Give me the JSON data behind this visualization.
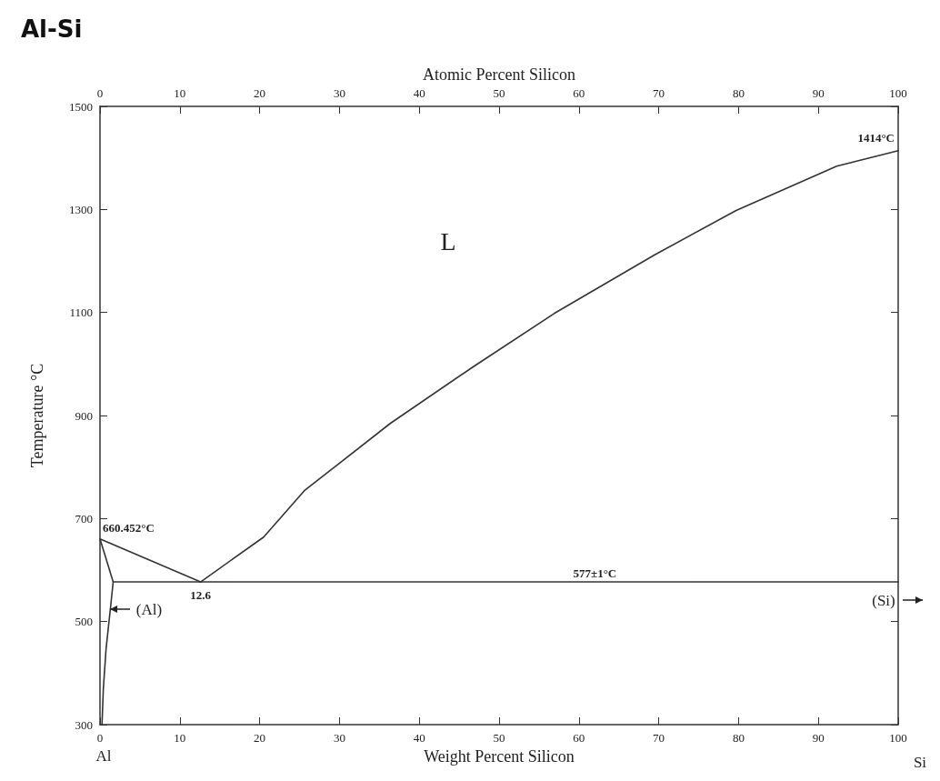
{
  "chart_data": {
    "type": "line",
    "title": "Al-Si",
    "xlabel": "Weight Percent Silicon",
    "x2label": "Atomic Percent Silicon",
    "ylabel": "Temperature °C",
    "xlim": [
      0,
      100
    ],
    "xticks": [
      0,
      10,
      20,
      30,
      40,
      50,
      60,
      70,
      80,
      90,
      100
    ],
    "x2lim": [
      0,
      100
    ],
    "x2ticks": [
      0,
      10,
      20,
      30,
      40,
      50,
      60,
      70,
      80,
      90,
      100
    ],
    "ylim": [
      300,
      1500
    ],
    "yticks": [
      300,
      500,
      700,
      900,
      1100,
      1300,
      1500
    ],
    "grid": false,
    "marker": "none",
    "line_style": "solid",
    "series": [
      {
        "color": "#333333",
        "x": [
          12.6,
          0,
          1.65,
          1.33,
          0.76,
          0.42,
          0.25
        ],
        "values": [
          577,
          660.452,
          577,
          529,
          447,
          370,
          300
        ]
      },
      {
        "color": "#333333",
        "x": [
          12.6,
          20.5,
          25.6,
          36.4,
          46.7,
          56.9,
          69.5,
          79.7,
          92.3,
          100
        ],
        "values": [
          577,
          664,
          754,
          885,
          994,
          1098,
          1212,
          1298,
          1384,
          1414
        ]
      },
      {
        "color": "#333333",
        "x": [
          1.65,
          100
        ],
        "values": [
          577,
          577
        ]
      }
    ],
    "annotations": [
      {
        "text": "660.452°C",
        "x": 0,
        "y": 660.452
      },
      {
        "text": "12.6",
        "x": 12.6,
        "y": 577
      },
      {
        "text": "577±1°C",
        "x": 62,
        "y": 577
      },
      {
        "text": "1414°C",
        "x": 100,
        "y": 1414
      },
      "L",
      "(Al)",
      "(Si)",
      {
        "text": "Al",
        "x": 0,
        "y": 300
      },
      "Si"
    ]
  }
}
